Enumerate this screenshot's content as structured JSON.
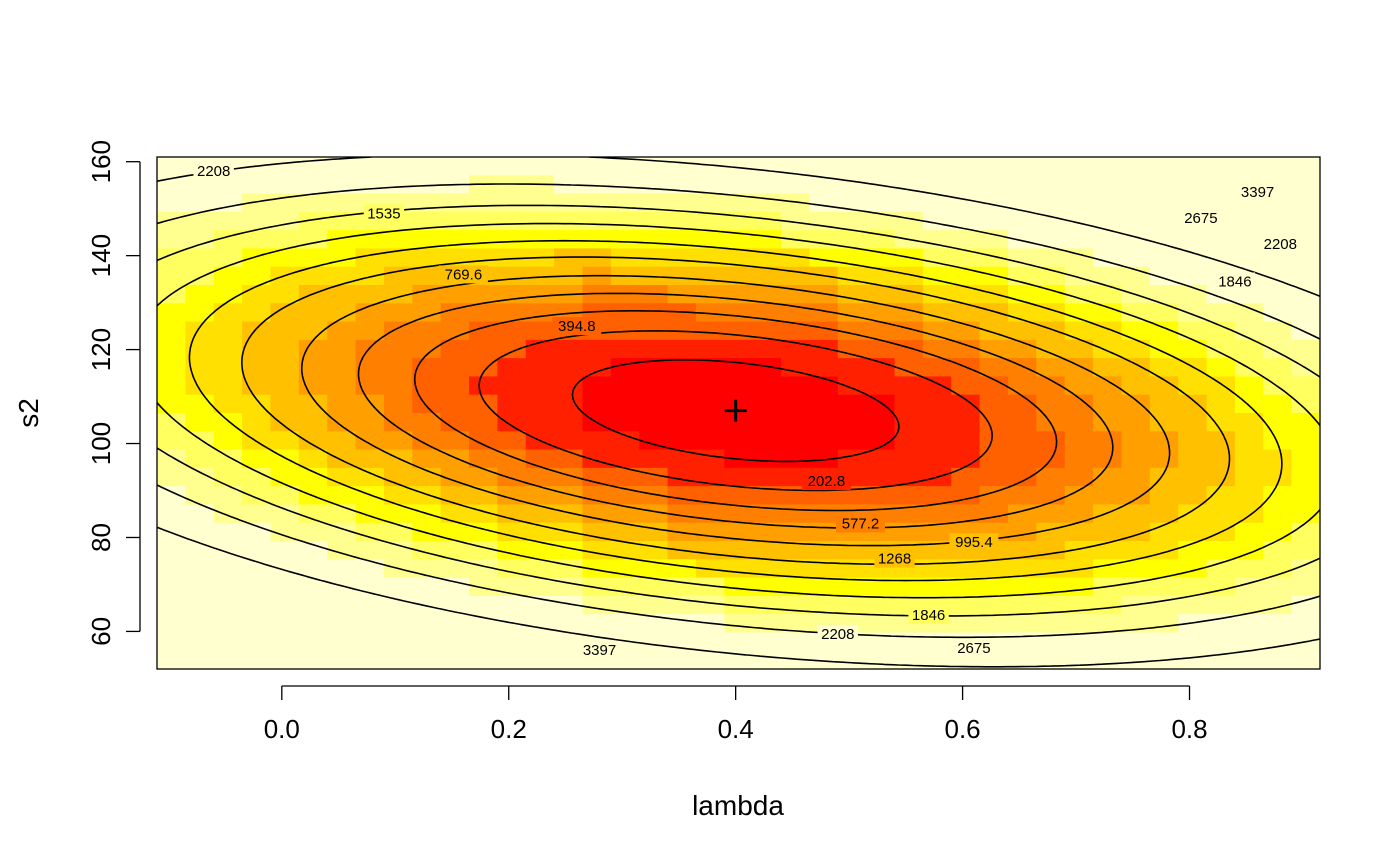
{
  "chart_data": {
    "type": "heatmap",
    "xlabel": "lambda",
    "ylabel": "s2",
    "xlim": [
      -0.11,
      0.915
    ],
    "ylim": [
      52,
      161
    ],
    "x_ticks": [
      "0.0",
      "0.2",
      "0.4",
      "0.6",
      "0.8"
    ],
    "x_tick_values": [
      0.0,
      0.2,
      0.4,
      0.6,
      0.8
    ],
    "y_ticks": [
      "60",
      "80",
      "100",
      "120",
      "140",
      "160"
    ],
    "y_tick_values": [
      60,
      80,
      100,
      120,
      140,
      160
    ],
    "minimum": {
      "lambda": 0.4,
      "s2": 107
    },
    "contour_levels": [
      202.8,
      394.8,
      577.2,
      769.6,
      995.4,
      1268,
      1535,
      1846,
      2208,
      2675,
      3397
    ],
    "contour_labels": [
      {
        "text": "202.8",
        "lambda": 0.48,
        "s2": 92
      },
      {
        "text": "394.8",
        "lambda": 0.26,
        "s2": 125
      },
      {
        "text": "577.2",
        "lambda": 0.51,
        "s2": 83
      },
      {
        "text": "769.6",
        "lambda": 0.16,
        "s2": 136
      },
      {
        "text": "995.4",
        "lambda": 0.61,
        "s2": 79
      },
      {
        "text": "1268",
        "lambda": 0.54,
        "s2": 75.5
      },
      {
        "text": "1535",
        "lambda": 0.09,
        "s2": 149
      },
      {
        "text": "1846",
        "lambda": 0.57,
        "s2": 63.5
      },
      {
        "text": "1846",
        "lambda": 0.84,
        "s2": 134.5
      },
      {
        "text": "2208",
        "lambda": 0.49,
        "s2": 59.5
      },
      {
        "text": "2208",
        "lambda": 0.88,
        "s2": 142.5
      },
      {
        "text": "2208",
        "lambda": -0.06,
        "s2": 158
      },
      {
        "text": "2675",
        "lambda": 0.61,
        "s2": 56.5
      },
      {
        "text": "2675",
        "lambda": 0.81,
        "s2": 148
      },
      {
        "text": "3397",
        "lambda": 0.28,
        "s2": 56
      },
      {
        "text": "3397",
        "lambda": 0.86,
        "s2": 153.5
      }
    ],
    "colors": {
      "levels": [
        "#ff0000",
        "#ff2000",
        "#ff6000",
        "#ff8000",
        "#ffa000",
        "#ffc000",
        "#ffe000",
        "#ffff00",
        "#ffff60",
        "#ffff90",
        "#ffffd0"
      ],
      "contour_line": "#000000",
      "minimum_marker": "#000000"
    }
  }
}
